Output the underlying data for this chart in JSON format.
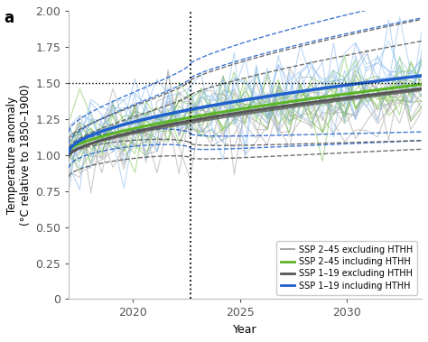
{
  "title_label": "a",
  "xlabel": "Year",
  "ylabel": "Temperature anomaly\n(°C relative to 1850–1900)",
  "xlim": [
    2017.0,
    2033.5
  ],
  "ylim": [
    0,
    2.0
  ],
  "xticks": [
    2020,
    2025,
    2030
  ],
  "yticks": [
    0,
    0.25,
    0.5,
    0.75,
    1.0,
    1.25,
    1.5,
    1.75,
    2.0
  ],
  "dotted_vline_x": 2022.7,
  "dotted_hline_y": 1.5,
  "color_gray": "#aaaaaa",
  "color_green": "#5bb526",
  "color_darkgray": "#555555",
  "color_blue": "#2060cc",
  "color_light_blue": "#88bbee",
  "legend_entries": [
    "SSP 2–45 excluding HTHH",
    "SSP 2–45 including HTHH",
    "SSP 1–19 excluding HTHH",
    "SSP 1–19 including HTHH"
  ],
  "x_start": 2017.0,
  "x_end": 2033.5,
  "vline_x": 2022.7,
  "seed": 12
}
